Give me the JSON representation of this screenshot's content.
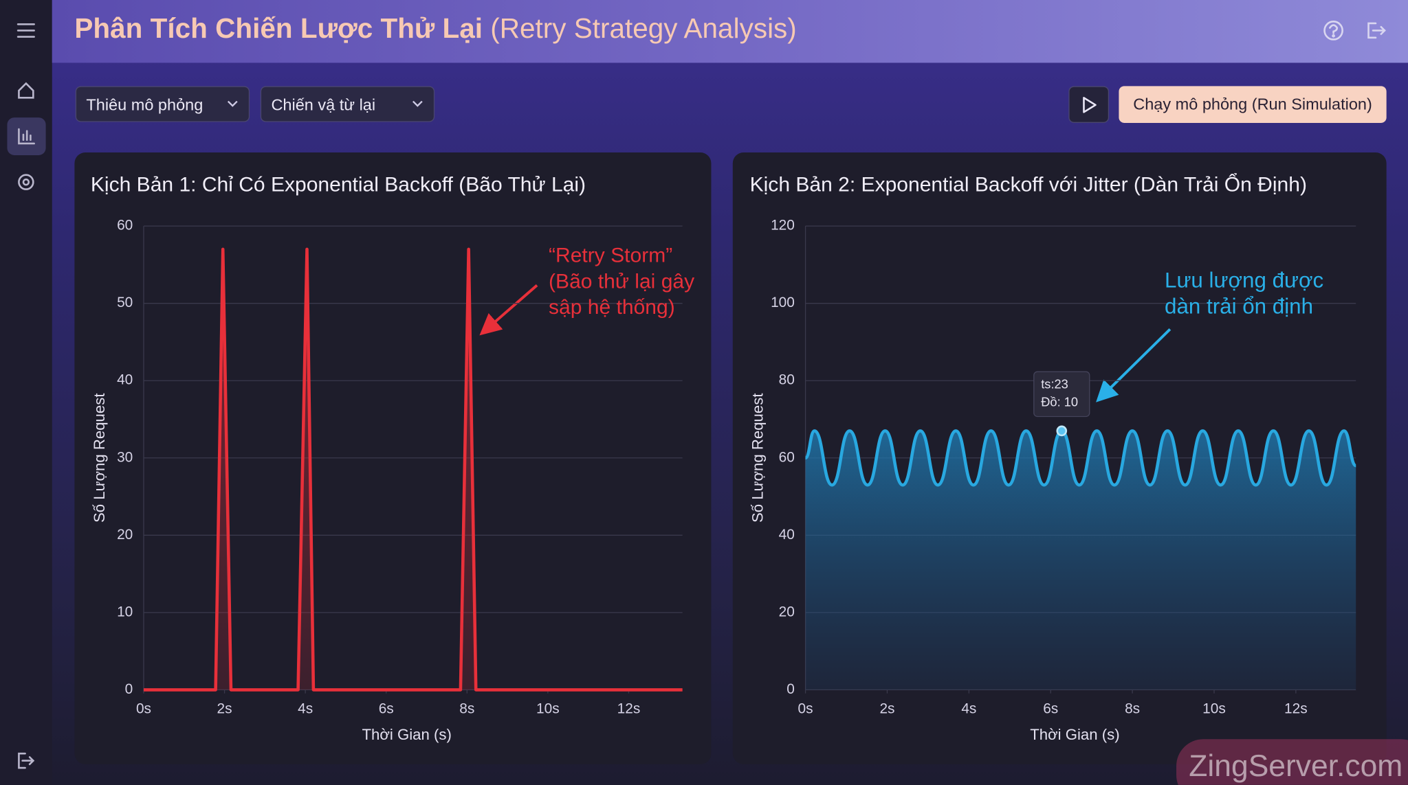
{
  "header": {
    "title": "Phân Tích Chiến Lược Thử Lại",
    "subtitle": "(Retry Strategy Analysis)"
  },
  "controls": {
    "scenario": "Thiêu mô phỏng",
    "strategy": "Chiến vậ từ lại",
    "run": "Chạy mô phỏng (Run Simulation)"
  },
  "watermark": "ZingServer.com",
  "chart_data": [
    {
      "type": "line",
      "title": "Kịch Bản 1: Chỉ Có Exponential Backoff (Bão Thử Lại)",
      "x_label": "Thời Gian (s)",
      "y_label": "Số Lượng Request",
      "x": [
        0,
        1.78,
        1.96,
        2.16,
        3.82,
        4.04,
        4.2,
        7.84,
        8.04,
        8.22,
        13.33
      ],
      "series": [
        {
          "name": "Requests",
          "color": "#e8303a",
          "values": [
            0,
            0,
            57,
            0,
            0,
            57,
            0,
            0,
            57,
            0,
            0
          ]
        }
      ],
      "xlim": [
        0,
        13.33
      ],
      "ylim": [
        0,
        60
      ],
      "xticks": [
        {
          "value": 0,
          "label": "0s"
        },
        {
          "value": 2,
          "label": "2s"
        },
        {
          "value": 4,
          "label": "4s"
        },
        {
          "value": 6,
          "label": "6s"
        },
        {
          "value": 8,
          "label": "8s"
        },
        {
          "value": 10,
          "label": "10s"
        },
        {
          "value": 12,
          "label": "12s"
        }
      ],
      "yticks": [
        0,
        10,
        20,
        30,
        40,
        50,
        60
      ],
      "grid": true,
      "smooth": false,
      "annotation": [
        "“Retry Storm”",
        "(Bão thử lại gây",
        "sập hệ thống)"
      ]
    },
    {
      "type": "line",
      "title": "Kịch Bản 2: Exponential Backoff với Jitter (Dàn Trải Ổn Định)",
      "x_label": "Thời Gian (s)",
      "y_label": "Số Lượng Request",
      "x": [
        0,
        0.22,
        0.65,
        1.08,
        1.52,
        1.95,
        2.38,
        2.81,
        3.24,
        3.68,
        4.11,
        4.54,
        4.97,
        5.4,
        5.84,
        6.27,
        6.7,
        7.13,
        7.56,
        8.0,
        8.43,
        8.86,
        9.29,
        9.72,
        10.16,
        10.59,
        11.02,
        11.45,
        11.88,
        12.32,
        12.75,
        13.18,
        13.47
      ],
      "series": [
        {
          "name": "Requests",
          "color": "#29a8e0",
          "values": [
            60,
            67,
            53,
            67,
            53,
            67,
            53,
            67,
            53,
            67,
            53,
            67,
            53,
            67,
            53,
            67,
            53,
            67,
            53,
            67,
            53,
            67,
            53,
            67,
            53,
            67,
            53,
            67,
            53,
            67,
            53,
            67,
            58
          ]
        }
      ],
      "xlim": [
        0,
        13.47
      ],
      "ylim": [
        0,
        120
      ],
      "xticks": [
        {
          "value": 0,
          "label": "0s"
        },
        {
          "value": 2,
          "label": "2s"
        },
        {
          "value": 4,
          "label": "4s"
        },
        {
          "value": 6,
          "label": "6s"
        },
        {
          "value": 8,
          "label": "8s"
        },
        {
          "value": 10,
          "label": "10s"
        },
        {
          "value": 12,
          "label": "12s"
        }
      ],
      "yticks": [
        0,
        20,
        40,
        60,
        80,
        100,
        120
      ],
      "grid": true,
      "smooth": true,
      "annotation": [
        "Lưu lượng được",
        "dàn trải ổn định"
      ],
      "tooltip": [
        "ts:23",
        "Đồ: 10"
      ]
    }
  ]
}
